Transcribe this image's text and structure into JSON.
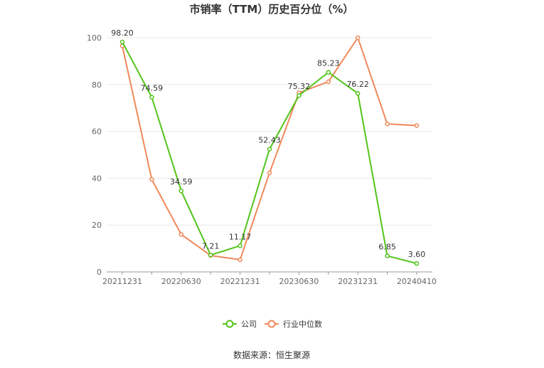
{
  "chart_data": {
    "type": "line",
    "title": "市销率（TTM）历史百分位（%）",
    "x": [
      "20211231",
      "",
      "20220630",
      "",
      "20221231",
      "",
      "20230630",
      "",
      "20231231",
      "",
      "20240410"
    ],
    "ylim": [
      0,
      100
    ],
    "yticks": [
      0,
      20,
      40,
      60,
      80,
      100
    ],
    "grid": true,
    "legend_position": "bottom",
    "series": [
      {
        "name": "公司",
        "color": "#52c41a",
        "values": [
          98.2,
          74.59,
          34.59,
          7.21,
          11.17,
          52.43,
          75.32,
          85.23,
          76.22,
          6.85,
          3.6
        ],
        "labels": [
          "98.20",
          "74.59",
          "34.59",
          "7.21",
          "11.17",
          "52.43",
          "75.32",
          "85.23",
          "76.22",
          "6.85",
          "3.60"
        ]
      },
      {
        "name": "行业中位数",
        "color": "#f0885a",
        "values": [
          96.5,
          39.5,
          16.0,
          7.0,
          5.2,
          42.3,
          76.5,
          81.2,
          100.0,
          63.2,
          62.5
        ]
      }
    ]
  },
  "source": "数据来源：恒生聚源"
}
